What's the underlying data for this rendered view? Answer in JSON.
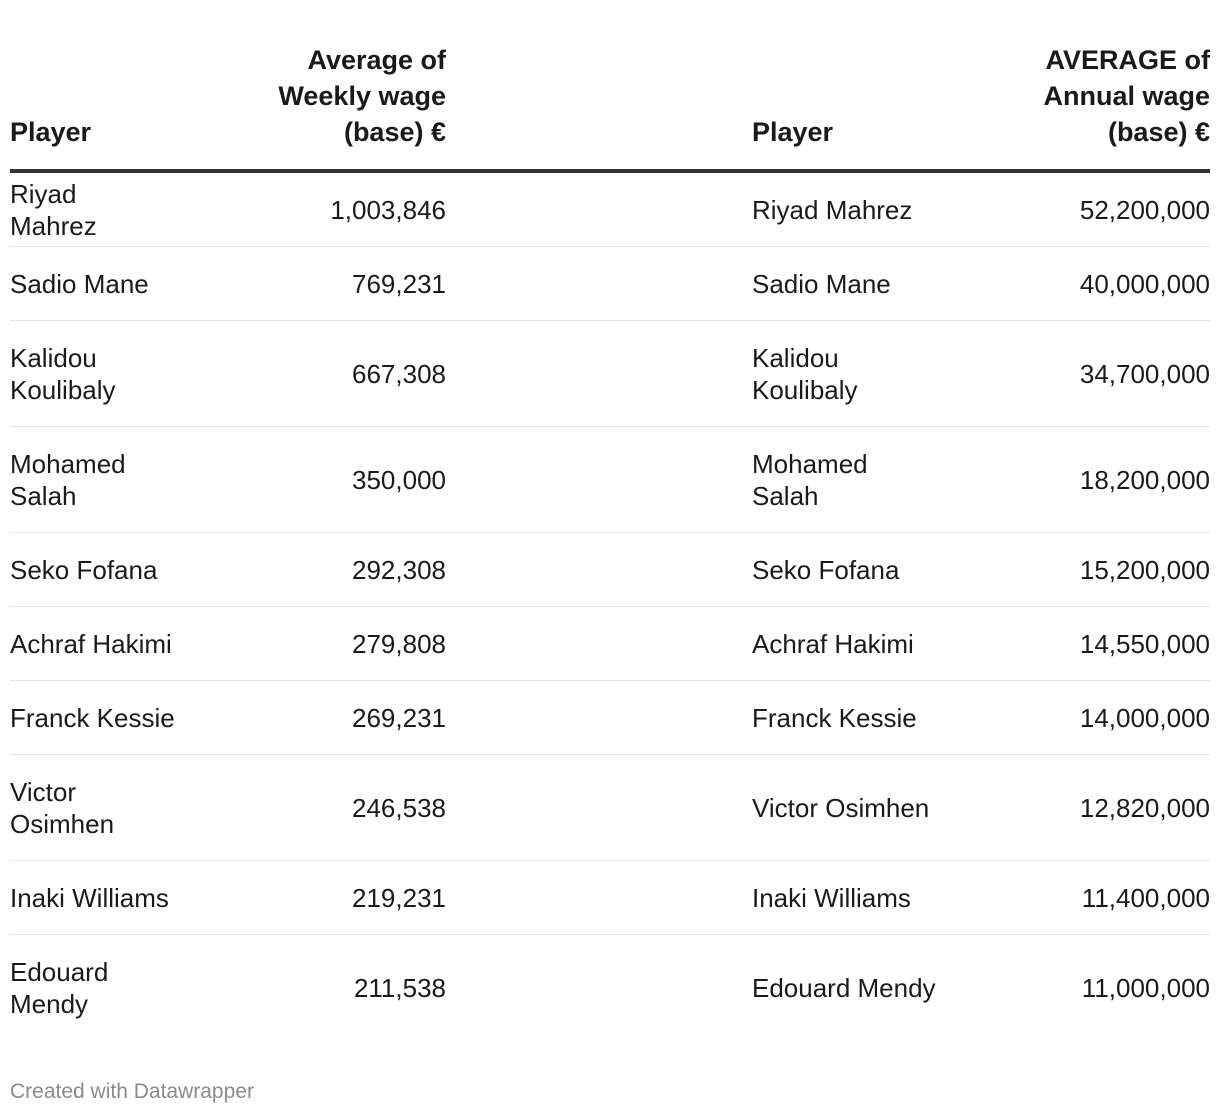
{
  "chart_data": {
    "type": "table",
    "columns": [
      "Player",
      "Average of Weekly wage (base) €",
      "Player",
      "AVERAGE of Annual wage (base) €"
    ],
    "header": {
      "player_a": "Player",
      "weekly_line1": "Average of",
      "weekly_line2": "Weekly wage",
      "weekly_line3": "(base) €",
      "player_b": "Player",
      "annual_line1": "AVERAGE of",
      "annual_line2": "Annual wage",
      "annual_line3": "(base) €"
    },
    "rows": [
      {
        "player_a": "Riyad Mahrez",
        "weekly": "1,003,846",
        "player_b": "Riyad Mahrez",
        "annual": "52,200,000"
      },
      {
        "player_a": "Sadio Mane",
        "weekly": "769,231",
        "player_b": "Sadio Mane",
        "annual": "40,000,000"
      },
      {
        "player_a": "Kalidou Koulibaly",
        "weekly": "667,308",
        "player_b": "Kalidou Koulibaly",
        "annual": "34,700,000"
      },
      {
        "player_a": "Mohamed Salah",
        "weekly": "350,000",
        "player_b": "Mohamed Salah",
        "annual": "18,200,000"
      },
      {
        "player_a": "Seko Fofana",
        "weekly": "292,308",
        "player_b": "Seko Fofana",
        "annual": "15,200,000"
      },
      {
        "player_a": "Achraf Hakimi",
        "weekly": "279,808",
        "player_b": "Achraf Hakimi",
        "annual": "14,550,000"
      },
      {
        "player_a": "Franck Kessie",
        "weekly": "269,231",
        "player_b": "Franck Kessie",
        "annual": "14,000,000"
      },
      {
        "player_a": "Victor Osimhen",
        "weekly": "246,538",
        "player_b": "Victor Osimhen",
        "annual": "12,820,000"
      },
      {
        "player_a": "Inaki Williams",
        "weekly": "219,231",
        "player_b": "Inaki Williams",
        "annual": "11,400,000"
      },
      {
        "player_a": "Edouard Mendy",
        "weekly": "211,538",
        "player_b": "Edouard Mendy",
        "annual": "11,000,000"
      }
    ]
  },
  "footer": {
    "credit": "Created with Datawrapper"
  }
}
